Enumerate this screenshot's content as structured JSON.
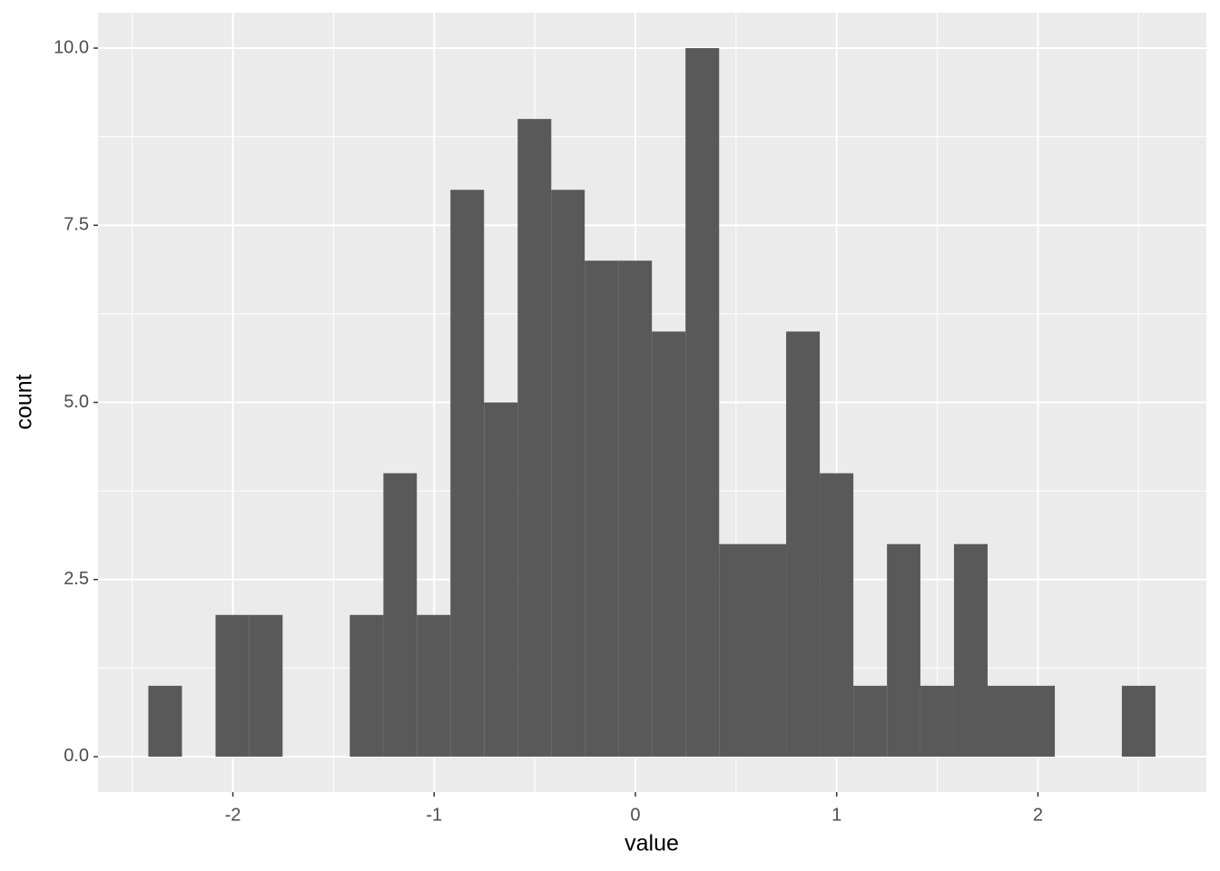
{
  "chart_data": {
    "type": "histogram",
    "x_label": "value",
    "y_label": "count",
    "bins": [
      -2.42,
      -2.253,
      -2.086,
      -1.92,
      -1.753,
      -1.586,
      -1.419,
      -1.252,
      -1.086,
      -0.919,
      -0.752,
      -0.585,
      -0.418,
      -0.252,
      -0.085,
      0.082,
      0.249,
      0.416,
      0.582,
      0.749,
      0.916,
      1.083,
      1.25,
      1.416,
      1.583,
      1.75,
      1.917,
      2.084,
      2.25,
      2.417,
      2.584
    ],
    "values": [
      1,
      0,
      2,
      2,
      0,
      0,
      2,
      4,
      2,
      8,
      5,
      9,
      8,
      7,
      7,
      6,
      10,
      3,
      3,
      6,
      4,
      1,
      3,
      1,
      3,
      1,
      1,
      0,
      0,
      1
    ],
    "color": "#595959",
    "panel_color": "#ebebeb",
    "grid": true,
    "xlim": [
      -2.67,
      2.837
    ],
    "ylim": [
      -0.5,
      10.5
    ],
    "xticks": [
      -2,
      -1,
      0,
      1,
      2
    ],
    "yticks": [
      {
        "value": 0,
        "label": "0.0"
      },
      {
        "value": 2.5,
        "label": "2.5"
      },
      {
        "value": 5,
        "label": "5.0"
      },
      {
        "value": 7.5,
        "label": "7.5"
      },
      {
        "value": 10,
        "label": "10.0"
      }
    ],
    "x_minor_grid": [
      -2.5,
      -1.5,
      -0.5,
      0.5,
      1.5,
      2.5
    ],
    "y_minor_grid": [
      1.25,
      3.75,
      6.25,
      8.75
    ]
  }
}
